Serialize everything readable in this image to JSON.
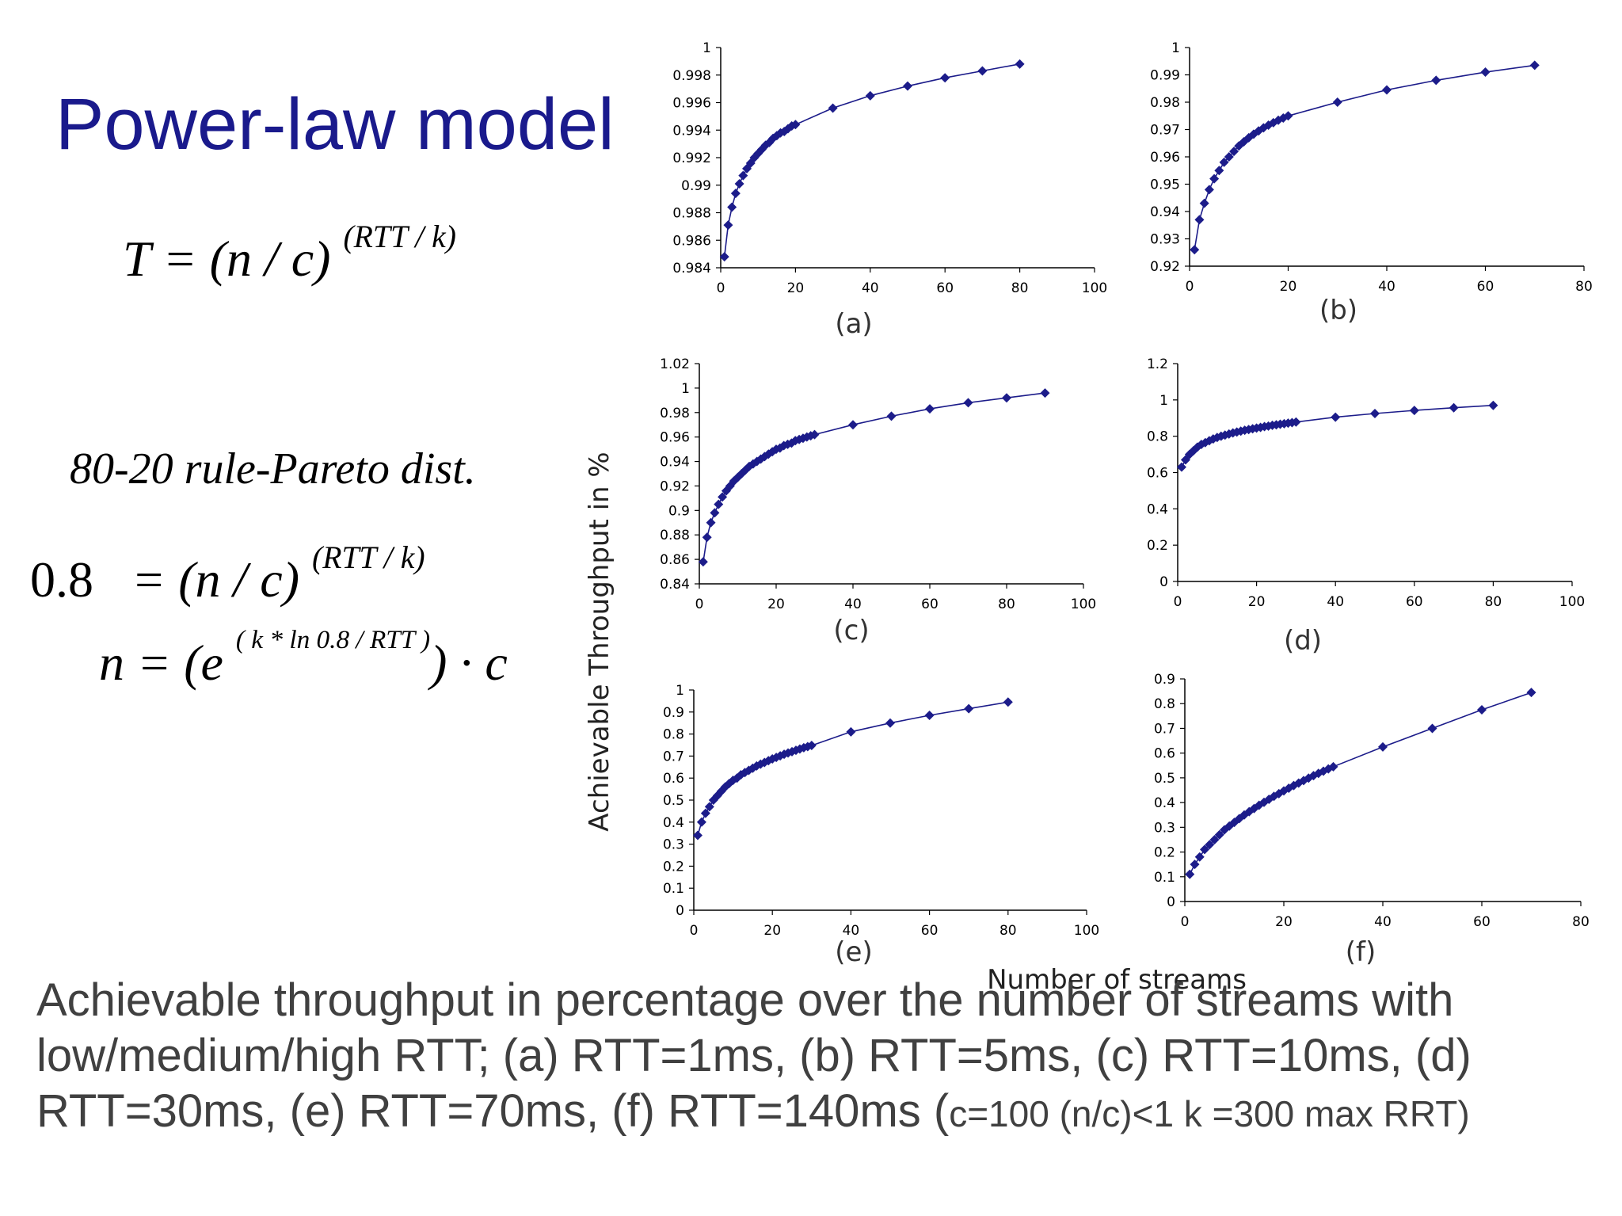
{
  "slide": {
    "title": "Power-law model",
    "rule_text": "80-20 rule-Pareto dist.",
    "eq1": {
      "lhs": "T = (n / c) ",
      "exp": "(RTT / k)"
    },
    "eq2": {
      "lhs": "0.8",
      "rhs": "= (n / c) ",
      "exp": "(RTT / k)"
    },
    "eq3": {
      "lhs": "n = (e ",
      "exp": "( k * ln 0.8 / RTT )",
      "rhs": ") · c"
    },
    "caption_main": "Achievable throughput in percentage over the number of streams with low/medium/high RTT; (a)  RTT=1ms,  (b)  RTT=5ms,  (c)  RTT=10ms,  (d)  RTT=30ms,  (e) RTT=70ms, (f) RTT=140ms  (",
    "caption_small": "c=100 (n/c)<1 k =300 max RRT)"
  },
  "axes": {
    "ylabel": "Achievable Throughput in %",
    "xlabel": "Number of streams"
  },
  "colors": {
    "series": "#1c1c8a",
    "title": "#1a1a8c",
    "caption": "#404040"
  },
  "chart_data": [
    {
      "label": "(a)",
      "type": "line",
      "xlim": [
        0,
        100
      ],
      "xticks": [
        0,
        20,
        40,
        60,
        80,
        100
      ],
      "ylim": [
        0.984,
        1
      ],
      "yticks": [
        "0.984",
        "0.986",
        "0.988",
        "0.99",
        "0.992",
        "0.994",
        "0.996",
        "0.998",
        "1"
      ],
      "x": [
        1,
        2,
        3,
        4,
        5,
        6,
        7,
        8,
        9,
        10,
        11,
        12,
        13,
        14,
        15,
        16,
        17,
        18,
        19,
        20,
        30,
        40,
        50,
        60,
        70,
        80
      ],
      "y": [
        0.9848,
        0.9871,
        0.9884,
        0.9894,
        0.9901,
        0.9907,
        0.9912,
        0.9916,
        0.992,
        0.9923,
        0.9926,
        0.9929,
        0.9931,
        0.9934,
        0.9936,
        0.9938,
        0.9939,
        0.9941,
        0.9943,
        0.9944,
        0.9956,
        0.9965,
        0.9972,
        0.9978,
        0.9983,
        0.9988
      ]
    },
    {
      "label": "(b)",
      "type": "line",
      "xlim": [
        0,
        80
      ],
      "xticks": [
        0,
        20,
        40,
        60,
        80
      ],
      "ylim": [
        0.92,
        1
      ],
      "yticks": [
        "0.92",
        "0.93",
        "0.94",
        "0.95",
        "0.96",
        "0.97",
        "0.98",
        "0.99",
        "1"
      ],
      "x": [
        1,
        2,
        3,
        4,
        5,
        6,
        7,
        8,
        9,
        10,
        11,
        12,
        13,
        14,
        15,
        16,
        17,
        18,
        19,
        20,
        30,
        40,
        50,
        60,
        70
      ],
      "y": [
        0.926,
        0.937,
        0.943,
        0.948,
        0.952,
        0.955,
        0.958,
        0.96,
        0.962,
        0.964,
        0.9655,
        0.967,
        0.9683,
        0.9695,
        0.9706,
        0.9716,
        0.9725,
        0.9734,
        0.9742,
        0.975,
        0.98,
        0.9845,
        0.988,
        0.991,
        0.9935
      ]
    },
    {
      "label": "(c)",
      "type": "line",
      "xlim": [
        0,
        100
      ],
      "xticks": [
        0,
        20,
        40,
        60,
        80,
        100
      ],
      "ylim": [
        0.84,
        1.02
      ],
      "yticks": [
        "0.84",
        "0.86",
        "0.88",
        "0.9",
        "0.92",
        "0.94",
        "0.96",
        "0.98",
        "1",
        "1.02"
      ],
      "x": [
        1,
        2,
        3,
        4,
        5,
        6,
        7,
        8,
        9,
        10,
        11,
        12,
        13,
        14,
        15,
        16,
        17,
        18,
        19,
        20,
        21,
        22,
        23,
        24,
        25,
        26,
        27,
        28,
        29,
        30,
        40,
        50,
        60,
        70,
        80,
        90
      ],
      "y": [
        0.858,
        0.878,
        0.89,
        0.898,
        0.905,
        0.911,
        0.916,
        0.92,
        0.924,
        0.927,
        0.93,
        0.933,
        0.936,
        0.938,
        0.94,
        0.942,
        0.944,
        0.946,
        0.948,
        0.95,
        0.951,
        0.953,
        0.954,
        0.955,
        0.957,
        0.958,
        0.959,
        0.96,
        0.961,
        0.962,
        0.97,
        0.977,
        0.983,
        0.988,
        0.992,
        0.996
      ]
    },
    {
      "label": "(d)",
      "type": "line",
      "xlim": [
        0,
        100
      ],
      "xticks": [
        0,
        20,
        40,
        60,
        80,
        100
      ],
      "ylim": [
        0,
        1.2
      ],
      "yticks": [
        "0",
        "0.2",
        "0.4",
        "0.6",
        "0.8",
        "1",
        "1.2"
      ],
      "x": [
        1,
        2,
        3,
        4,
        5,
        6,
        7,
        8,
        9,
        10,
        11,
        12,
        13,
        14,
        15,
        16,
        17,
        18,
        19,
        20,
        21,
        22,
        23,
        24,
        25,
        26,
        27,
        28,
        29,
        30,
        40,
        50,
        60,
        70,
        80
      ],
      "y": [
        0.63,
        0.67,
        0.7,
        0.72,
        0.74,
        0.755,
        0.765,
        0.775,
        0.785,
        0.793,
        0.8,
        0.806,
        0.812,
        0.818,
        0.823,
        0.828,
        0.833,
        0.837,
        0.841,
        0.845,
        0.849,
        0.853,
        0.856,
        0.86,
        0.863,
        0.866,
        0.869,
        0.872,
        0.875,
        0.878,
        0.905,
        0.925,
        0.942,
        0.957,
        0.97
      ]
    },
    {
      "label": "(e)",
      "type": "line",
      "xlim": [
        0,
        100
      ],
      "xticks": [
        0,
        20,
        40,
        60,
        80,
        100
      ],
      "ylim": [
        0,
        1
      ],
      "yticks": [
        "0",
        "0.1",
        "0.2",
        "0.3",
        "0.4",
        "0.5",
        "0.6",
        "0.7",
        "0.8",
        "0.9",
        "1"
      ],
      "x": [
        1,
        2,
        3,
        4,
        5,
        6,
        7,
        8,
        9,
        10,
        11,
        12,
        13,
        14,
        15,
        16,
        17,
        18,
        19,
        20,
        21,
        22,
        23,
        24,
        25,
        26,
        27,
        28,
        29,
        30,
        40,
        50,
        60,
        70,
        80
      ],
      "y": [
        0.34,
        0.4,
        0.44,
        0.47,
        0.5,
        0.52,
        0.54,
        0.56,
        0.575,
        0.59,
        0.6,
        0.615,
        0.625,
        0.635,
        0.645,
        0.655,
        0.663,
        0.671,
        0.679,
        0.687,
        0.694,
        0.701,
        0.708,
        0.714,
        0.72,
        0.726,
        0.732,
        0.738,
        0.743,
        0.748,
        0.81,
        0.85,
        0.885,
        0.915,
        0.945
      ]
    },
    {
      "label": "(f)",
      "type": "line",
      "xlim": [
        0,
        80
      ],
      "xticks": [
        0,
        20,
        40,
        60,
        80
      ],
      "ylim": [
        0,
        0.9
      ],
      "yticks": [
        "0",
        "0.1",
        "0.2",
        "0.3",
        "0.4",
        "0.5",
        "0.6",
        "0.7",
        "0.8",
        "0.9"
      ],
      "x": [
        1,
        2,
        3,
        4,
        5,
        6,
        7,
        8,
        9,
        10,
        11,
        12,
        13,
        14,
        15,
        16,
        17,
        18,
        19,
        20,
        21,
        22,
        23,
        24,
        25,
        26,
        27,
        28,
        29,
        30,
        40,
        50,
        60,
        70
      ],
      "y": [
        0.11,
        0.15,
        0.18,
        0.21,
        0.23,
        0.25,
        0.27,
        0.29,
        0.305,
        0.32,
        0.335,
        0.35,
        0.363,
        0.376,
        0.389,
        0.401,
        0.413,
        0.425,
        0.436,
        0.447,
        0.458,
        0.469,
        0.479,
        0.489,
        0.499,
        0.509,
        0.518,
        0.527,
        0.536,
        0.545,
        0.625,
        0.7,
        0.775,
        0.845
      ]
    }
  ]
}
